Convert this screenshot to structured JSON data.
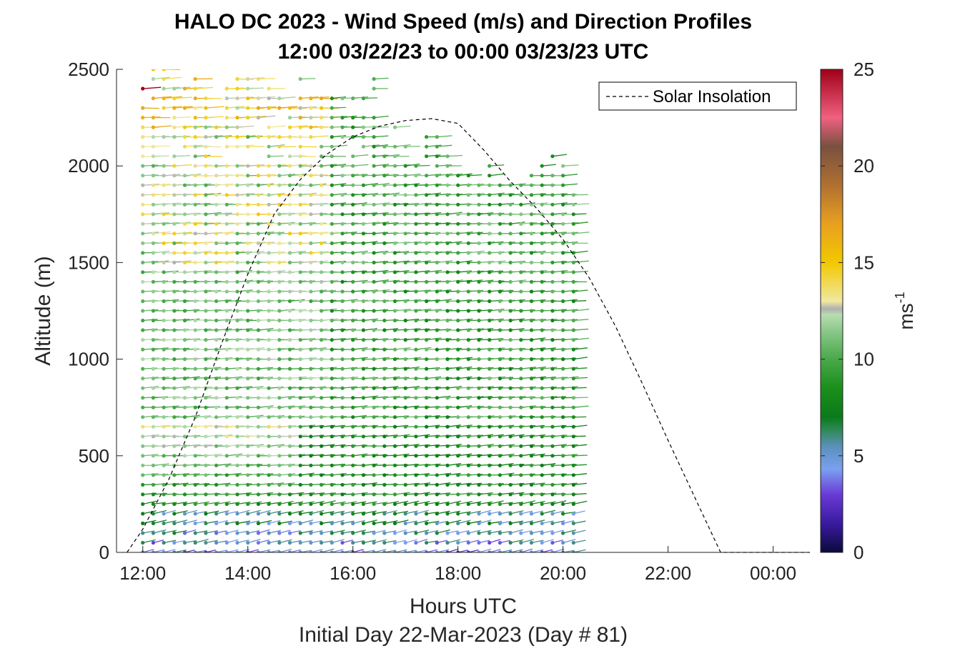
{
  "chart_data": {
    "type": "scatter",
    "title": "HALO DC 2023 - Wind Speed (m/s) and Direction Profiles",
    "subtitle": "12:00 03/22/23 to 00:00 03/23/23  UTC",
    "xlabel": "Hours UTC",
    "xlabel2": "Initial Day 22-Mar-2023 (Day # 81)",
    "ylabel": "Altitude (m)",
    "xlim": [
      11.5,
      24.7
    ],
    "ylim": [
      0,
      2500
    ],
    "x_ticks": [
      12,
      14,
      16,
      18,
      20,
      22,
      24
    ],
    "x_tick_labels": [
      "12:00",
      "14:00",
      "16:00",
      "18:00",
      "20:00",
      "22:00",
      "00:00"
    ],
    "y_ticks": [
      0,
      500,
      1000,
      1500,
      2000,
      2500
    ],
    "y_tick_labels": [
      "0",
      "500",
      "1000",
      "1500",
      "2000",
      "2500"
    ],
    "legend": {
      "entries": [
        "Solar Insolation"
      ],
      "placement": "top-right"
    },
    "colorbar": {
      "label": "ms",
      "label_exponent": "-1",
      "range": [
        0,
        25
      ],
      "ticks": [
        0,
        5,
        10,
        15,
        20,
        25
      ],
      "tick_labels": [
        "0",
        "5",
        "10",
        "15",
        "20",
        "25"
      ],
      "stops": [
        {
          "v": 0,
          "c": "#0a0a3c"
        },
        {
          "v": 1.5,
          "c": "#3a1aa0"
        },
        {
          "v": 3,
          "c": "#6a3ad6"
        },
        {
          "v": 4.3,
          "c": "#7aa0f0"
        },
        {
          "v": 5.5,
          "c": "#5a90b8"
        },
        {
          "v": 6.3,
          "c": "#2f8a5a"
        },
        {
          "v": 7,
          "c": "#0a7a1a"
        },
        {
          "v": 8.5,
          "c": "#1b8f1b"
        },
        {
          "v": 10,
          "c": "#4aa84a"
        },
        {
          "v": 11.5,
          "c": "#8cc98c"
        },
        {
          "v": 12.3,
          "c": "#b8dcb0"
        },
        {
          "v": 12.6,
          "c": "#b0b0b0"
        },
        {
          "v": 13,
          "c": "#f0e8a0"
        },
        {
          "v": 15,
          "c": "#f2c800"
        },
        {
          "v": 17,
          "c": "#e8a020"
        },
        {
          "v": 19,
          "c": "#b07030"
        },
        {
          "v": 21,
          "c": "#7a5040"
        },
        {
          "v": 22.5,
          "c": "#f06080"
        },
        {
          "v": 25,
          "c": "#a00018"
        }
      ]
    },
    "solar_insolation": {
      "style": "dashed",
      "color": "#000000",
      "points": [
        [
          11.7,
          0
        ],
        [
          12.0,
          120
        ],
        [
          12.5,
          380
        ],
        [
          13.0,
          700
        ],
        [
          13.5,
          1080
        ],
        [
          14.0,
          1440
        ],
        [
          14.5,
          1750
        ],
        [
          15.0,
          1930
        ],
        [
          15.5,
          2060
        ],
        [
          16.0,
          2150
        ],
        [
          16.5,
          2205
        ],
        [
          17.0,
          2235
        ],
        [
          17.5,
          2245
        ],
        [
          18.0,
          2220
        ],
        [
          18.5,
          2080
        ],
        [
          19.0,
          1920
        ],
        [
          19.5,
          1780
        ],
        [
          20.0,
          1620
        ],
        [
          20.5,
          1420
        ],
        [
          21.0,
          1170
        ],
        [
          21.5,
          880
        ],
        [
          22.0,
          580
        ],
        [
          22.5,
          290
        ],
        [
          23.0,
          0
        ],
        [
          24.7,
          0
        ]
      ]
    },
    "profiles": {
      "time_start": 12.0,
      "time_step": 0.2,
      "count": 42,
      "altitude_step": 50,
      "data_top_first_profile": 2450,
      "data_top_late": 1950,
      "wind_direction_deg_approx": 250
    }
  }
}
